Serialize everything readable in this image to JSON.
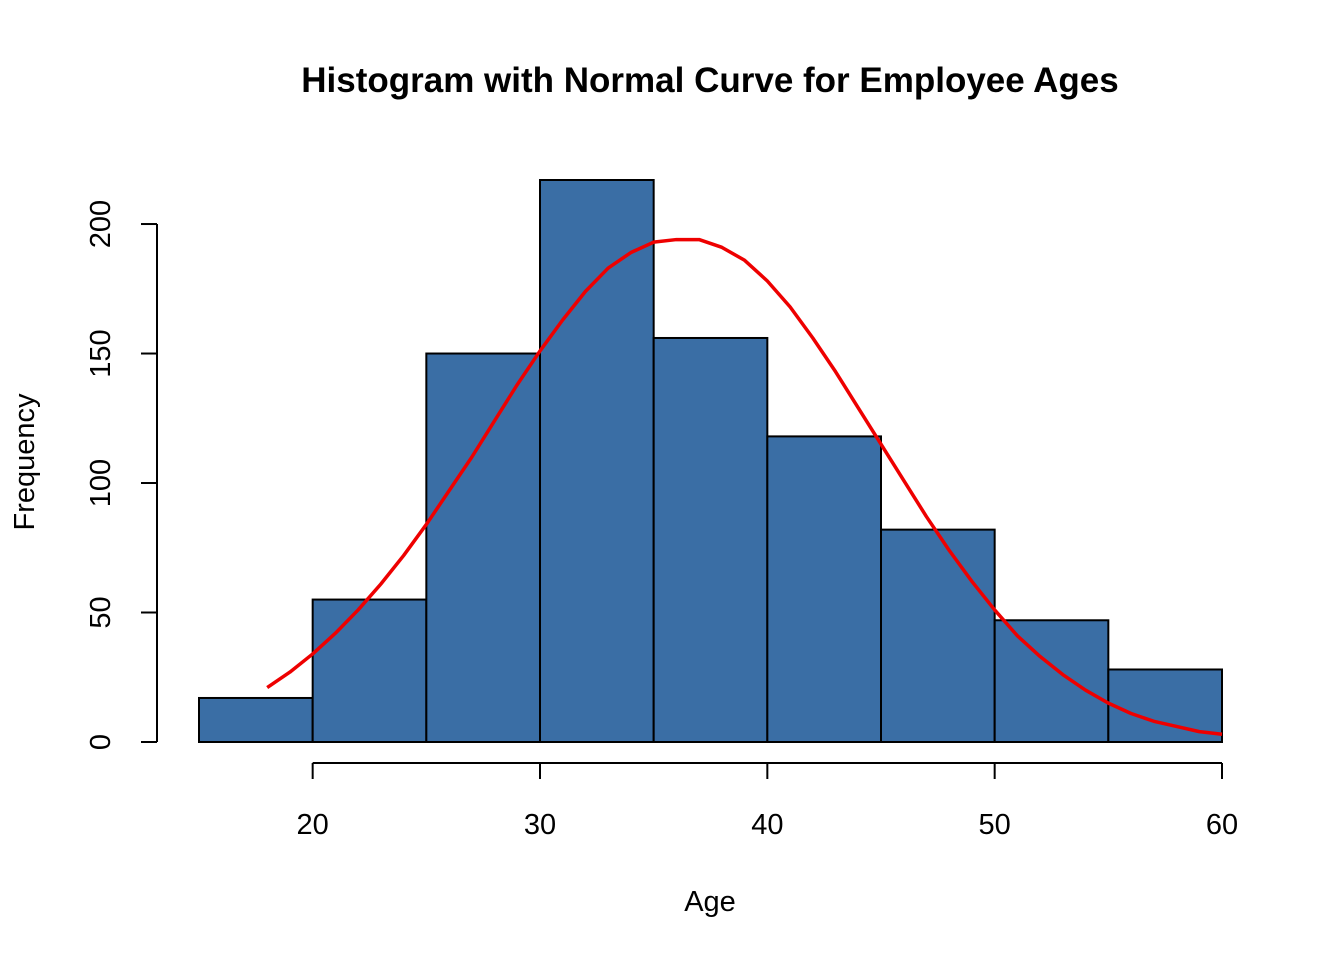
{
  "chart_data": {
    "type": "bar",
    "title": "Histogram with Normal Curve for Employee Ages",
    "xlabel": "Age",
    "ylabel": "Frequency",
    "bins": [
      {
        "start": 15,
        "end": 20,
        "count": 17
      },
      {
        "start": 20,
        "end": 25,
        "count": 55
      },
      {
        "start": 25,
        "end": 30,
        "count": 150
      },
      {
        "start": 30,
        "end": 35,
        "count": 217
      },
      {
        "start": 35,
        "end": 40,
        "count": 156
      },
      {
        "start": 40,
        "end": 45,
        "count": 118
      },
      {
        "start": 45,
        "end": 50,
        "count": 82
      },
      {
        "start": 50,
        "end": 55,
        "count": 47
      },
      {
        "start": 55,
        "end": 60,
        "count": 28
      }
    ],
    "x_ticks": [
      20,
      30,
      40,
      50,
      60
    ],
    "y_ticks": [
      0,
      50,
      100,
      150,
      200
    ],
    "xlim": [
      15,
      60
    ],
    "ylim": [
      0,
      217
    ],
    "normal_curve": {
      "x": [
        18,
        19,
        20,
        21,
        22,
        23,
        24,
        25,
        26,
        27,
        28,
        29,
        30,
        31,
        32,
        33,
        34,
        35,
        36,
        37,
        38,
        39,
        40,
        41,
        42,
        43,
        44,
        45,
        46,
        47,
        48,
        49,
        50,
        51,
        52,
        53,
        54,
        55,
        56,
        57,
        58,
        59,
        60
      ],
      "y": [
        21,
        27,
        34,
        42,
        51,
        61,
        72,
        84,
        97,
        110,
        124,
        138,
        151,
        163,
        174,
        183,
        189,
        193,
        194,
        194,
        191,
        186,
        178,
        168,
        156,
        143,
        129,
        115,
        101,
        87,
        74,
        62,
        51,
        41,
        33,
        26,
        20,
        15,
        11,
        8,
        6,
        4,
        3
      ]
    },
    "bar_color": "#3A6EA5",
    "curve_color": "#EE0000",
    "grid": false,
    "legend": "none"
  }
}
